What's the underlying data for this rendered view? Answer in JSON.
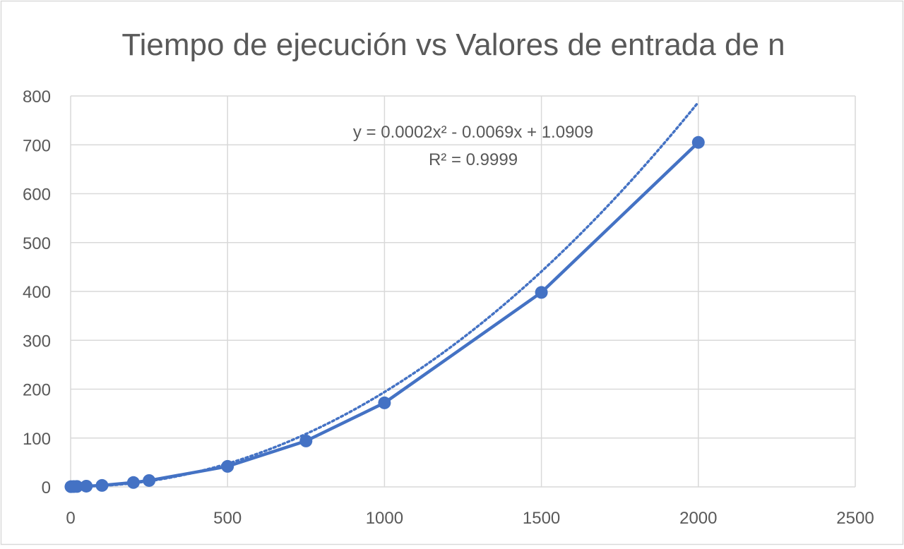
{
  "chart_data": {
    "type": "scatter",
    "title": "Tiempo de ejecución vs Valores de entrada de n",
    "xlabel": "",
    "ylabel": "",
    "xlim": [
      0,
      2500
    ],
    "ylim": [
      0,
      800
    ],
    "x_ticks": [
      0,
      500,
      1000,
      1500,
      2000,
      2500
    ],
    "y_ticks": [
      0,
      100,
      200,
      300,
      400,
      500,
      600,
      700,
      800
    ],
    "grid": true,
    "legend": "none",
    "series": [
      {
        "color": "#4472c4",
        "connected": true,
        "marker": "circle",
        "points": [
          {
            "x": 1,
            "y": 0.5
          },
          {
            "x": 10,
            "y": 0.7
          },
          {
            "x": 20,
            "y": 0.9
          },
          {
            "x": 50,
            "y": 1.5
          },
          {
            "x": 100,
            "y": 3
          },
          {
            "x": 200,
            "y": 9
          },
          {
            "x": 250,
            "y": 13
          },
          {
            "x": 500,
            "y": 42
          },
          {
            "x": 750,
            "y": 94
          },
          {
            "x": 1000,
            "y": 172
          },
          {
            "x": 1500,
            "y": 398
          },
          {
            "x": 2000,
            "y": 705
          }
        ]
      }
    ],
    "trendline": {
      "type": "polynomial",
      "order": 2,
      "style": "dotted",
      "color": "#4472c4",
      "coefficients": [
        0.0002,
        -0.0069,
        1.0909
      ],
      "equation": "y = 0.0002x² - 0.0069x + 1.0909",
      "r_squared": "R² = 0.9999"
    },
    "colors": {
      "grid": "#d9d9d9",
      "text": "#595959",
      "border": "#d9d9d9"
    }
  }
}
